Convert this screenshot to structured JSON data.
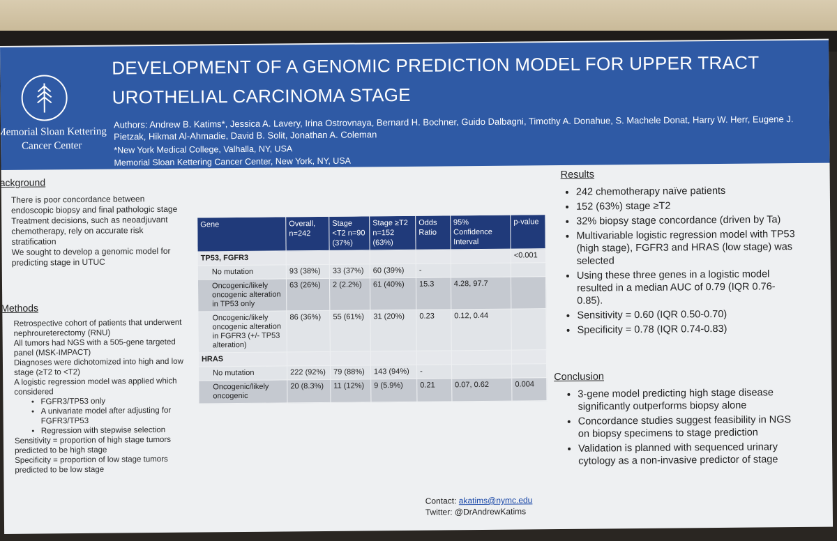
{
  "poster": {
    "title": "DEVELOPMENT OF A GENOMIC PREDICTION MODEL FOR UPPER TRACT UROTHELIAL CARCINOMA STAGE",
    "org_name": "Memorial Sloan Kettering Cancer Center",
    "authors": "Authors: Andrew B. Katims*, Jessica A. Lavery, Irina Ostrovnaya, Bernard H. Bochner, Guido Dalbagni, Timothy A. Donahue, S. Machele Donat, Harry W. Herr, Eugene J. Pietzak, Hikmat Al-Ahmadie, David B. Solit, Jonathan A. Coleman",
    "affiliation_1": "*New York Medical College, Valhalla, NY, USA",
    "affiliation_2": "Memorial Sloan Kettering Cancer Center, New York, NY, USA",
    "colors": {
      "header": "#2f5aa5",
      "table_header": "#203a7a",
      "poster_bg": "#eef0f2"
    }
  },
  "background": {
    "heading": "ackground",
    "paragraphs": [
      "There is poor concordance between endoscopic biopsy and final pathologic stage",
      "Treatment decisions, such as neoadjuvant chemotherapy, rely on accurate risk stratification",
      "We sought to develop a genomic model for predicting stage in UTUC"
    ]
  },
  "methods": {
    "heading": "Methods",
    "paragraphs": [
      "Retrospective cohort of patients that underwent nephroureterectomy (RNU)",
      "All tumors had NGS with a 505-gene targeted panel (MSK-IMPACT)",
      "Diagnoses were dichotomized into high and low stage (≥T2 to <T2)",
      "A logistic regression model was applied which considered"
    ],
    "sub_items": [
      "FGFR3/TP53 only",
      "A univariate model after adjusting for FGFR3/TP53",
      "Regression with stepwise selection"
    ],
    "tail": [
      "Sensitivity = proportion of high stage tumors predicted to be high stage",
      "Specificity = proportion of low stage tumors predicted to be low stage"
    ]
  },
  "table": {
    "headers": [
      "Gene",
      "Overall, n=242",
      "Stage <T2 n=90 (37%)",
      "Stage ≥T2 n=152 (63%)",
      "Odds Ratio",
      "95% Confidence Interval",
      "p-value"
    ],
    "groups": [
      {
        "name": "TP53, FGFR3",
        "p": "<0.001"
      },
      {
        "name": "HRAS",
        "p": ""
      }
    ],
    "rows": [
      [
        "No mutation",
        "93 (38%)",
        "33 (37%)",
        "60 (39%)",
        "-",
        "",
        ""
      ],
      [
        "Oncogenic/likely oncogenic alteration in TP53 only",
        "63 (26%)",
        "2 (2.2%)",
        "61 (40%)",
        "15.3",
        "4.28, 97.7",
        ""
      ],
      [
        "Oncogenic/likely oncogenic alteration in FGFR3 (+/- TP53 alteration)",
        "86 (36%)",
        "55 (61%)",
        "31 (20%)",
        "0.23",
        "0.12, 0.44",
        ""
      ],
      [
        "No mutation",
        "222 (92%)",
        "79 (88%)",
        "143 (94%)",
        "-",
        "",
        ""
      ],
      [
        "Oncogenic/likely oncogenic",
        "20 (8.3%)",
        "11 (12%)",
        "9 (5.9%)",
        "0.21",
        "0.07, 0.62",
        "0.004"
      ]
    ]
  },
  "results": {
    "heading": "Results",
    "items": [
      "242 chemotherapy naïve patients",
      "152 (63%) stage ≥T2",
      "32% biopsy stage concordance (driven by Ta)",
      "Multivariable logistic regression model with TP53 (high stage), FGFR3 and HRAS (low stage) was selected",
      "Using these three genes in a logistic model resulted in a median AUC of 0.79 (IQR 0.76-0.85).",
      "Sensitivity = 0.60 (IQR 0.50-0.70)",
      "Specificity = 0.78 (IQR 0.74-0.83)"
    ]
  },
  "conclusion": {
    "heading": "Conclusion",
    "items": [
      "3-gene model predicting high stage disease significantly outperforms biopsy alone",
      "Concordance studies suggest feasibility in NGS on biopsy specimens to stage prediction",
      "Validation is planned with sequenced urinary cytology as a non-invasive predictor of stage"
    ]
  },
  "contact": {
    "label": "Contact:",
    "email": "akatims@nymc.edu",
    "twitter_label": "Twitter:",
    "twitter": "@DrAndrewKatims"
  }
}
